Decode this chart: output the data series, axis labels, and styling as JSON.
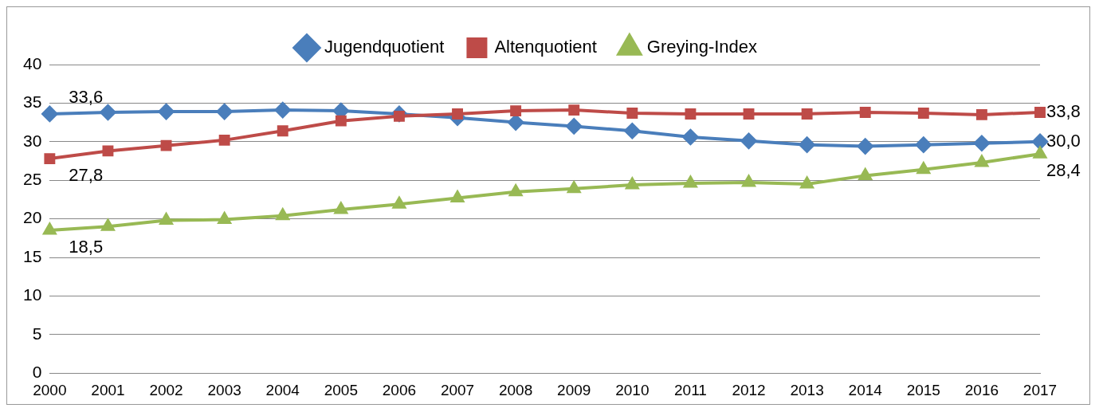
{
  "chart_data": {
    "type": "line",
    "categories": [
      "2000",
      "2001",
      "2002",
      "2003",
      "2004",
      "2005",
      "2006",
      "2007",
      "2008",
      "2009",
      "2010",
      "2011",
      "2012",
      "2013",
      "2014",
      "2015",
      "2016",
      "2017"
    ],
    "ylim": [
      0,
      40
    ],
    "yticks": [
      0,
      5,
      10,
      15,
      20,
      25,
      30,
      35,
      40
    ],
    "grid": "y",
    "legend": "top",
    "line_style": "solid",
    "series": [
      {
        "name": "Jugendquotient",
        "color": "#4a7ebb",
        "marker": "diamond",
        "values": [
          33.6,
          33.8,
          33.9,
          33.9,
          34.1,
          34.0,
          33.6,
          33.1,
          32.5,
          32.0,
          31.4,
          30.6,
          30.1,
          29.6,
          29.4,
          29.6,
          29.8,
          30.0
        ],
        "value_labels": [
          "33,6",
          null,
          null,
          null,
          null,
          null,
          null,
          null,
          null,
          null,
          null,
          null,
          null,
          null,
          null,
          null,
          null,
          "30,0"
        ]
      },
      {
        "name": "Altenquotient",
        "color": "#be4b48",
        "marker": "square",
        "values": [
          27.8,
          28.8,
          29.5,
          30.2,
          31.4,
          32.7,
          33.3,
          33.6,
          34.0,
          34.1,
          33.7,
          33.6,
          33.6,
          33.6,
          33.8,
          33.7,
          33.5,
          33.8
        ],
        "value_labels": [
          "27,8",
          null,
          null,
          null,
          null,
          null,
          null,
          null,
          null,
          null,
          null,
          null,
          null,
          null,
          null,
          null,
          null,
          "33,8"
        ]
      },
      {
        "name": "Greying-Index",
        "color": "#98b954",
        "marker": "triangle",
        "values": [
          18.5,
          19.0,
          19.8,
          19.9,
          20.4,
          21.2,
          21.9,
          22.7,
          23.5,
          23.9,
          24.4,
          24.6,
          24.7,
          24.5,
          25.6,
          26.4,
          27.3,
          28.4
        ],
        "value_labels": [
          "18,5",
          null,
          null,
          null,
          null,
          null,
          null,
          null,
          null,
          null,
          null,
          null,
          null,
          null,
          null,
          null,
          null,
          "28,4"
        ]
      }
    ]
  }
}
